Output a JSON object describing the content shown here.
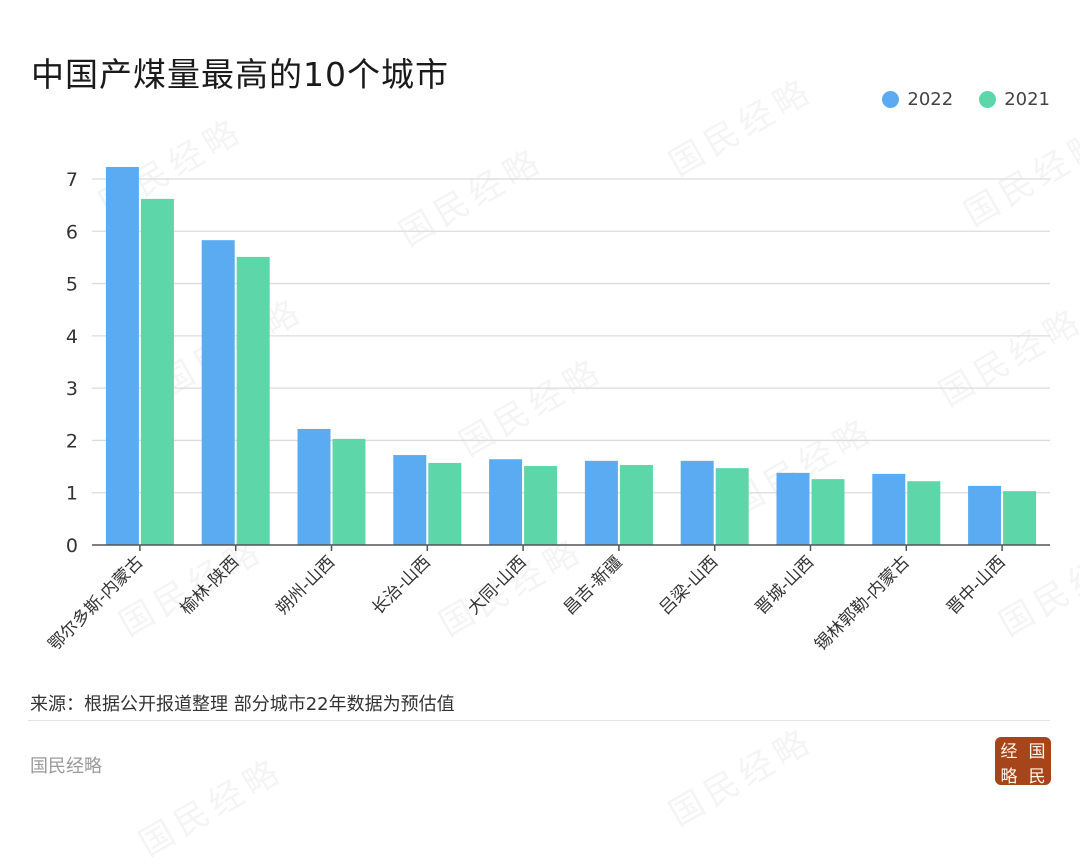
{
  "header": {
    "title": "中国产煤量最高的10个城市"
  },
  "legend": {
    "items": [
      {
        "label": "2022",
        "color": "#5aabf1"
      },
      {
        "label": "2021",
        "color": "#5dd6a9"
      }
    ]
  },
  "footer": {
    "source": "来源：根据公开报道整理 部分城市22年数据为预估值",
    "brand": "国民经略",
    "seal_chars": [
      "经",
      "国",
      "略",
      "民"
    ]
  },
  "watermark": {
    "text": "国民经略"
  },
  "colors": {
    "series_2022": "#5aabf1",
    "series_2021": "#5dd6a9",
    "grid": "#dcdcdc",
    "axis": "#555555",
    "seal": "#a6441c"
  },
  "chart_data": {
    "type": "bar",
    "title": "中国产煤量最高的10个城市",
    "xlabel": "",
    "ylabel": "",
    "ylim": [
      0,
      7
    ],
    "yticks": [
      0,
      1,
      2,
      3,
      4,
      5,
      6,
      7
    ],
    "grid": true,
    "legend_position": "top-right",
    "categories": [
      "鄂尔多斯-内蒙古",
      "榆林-陕西",
      "朔州-山西",
      "长治-山西",
      "大同-山西",
      "昌吉-新疆",
      "吕梁-山西",
      "晋城-山西",
      "锡林郭勒-内蒙古",
      "晋中-山西"
    ],
    "series": [
      {
        "name": "2022",
        "color": "#5aabf1",
        "values": [
          7.23,
          5.83,
          2.22,
          1.72,
          1.64,
          1.61,
          1.61,
          1.38,
          1.36,
          1.13
        ]
      },
      {
        "name": "2021",
        "color": "#5dd6a9",
        "values": [
          6.62,
          5.51,
          2.03,
          1.57,
          1.51,
          1.53,
          1.47,
          1.26,
          1.22,
          1.03
        ]
      }
    ],
    "annotations": [
      "来源：根据公开报道整理 部分城市22年数据为预估值"
    ]
  }
}
